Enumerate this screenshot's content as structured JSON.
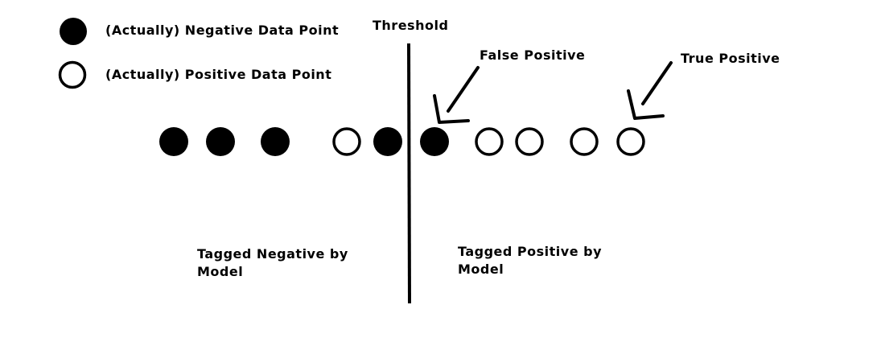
{
  "legend": {
    "negative_label": "(Actually) Negative Data Point",
    "positive_label": "(Actually) Positive Data Point"
  },
  "threshold_label": "Threshold",
  "annotations": {
    "false_positive": "False Positive",
    "true_positive": "True Positive"
  },
  "regions": {
    "negative": "Tagged Negative by Model",
    "positive": "Tagged Positive by Model"
  },
  "points": [
    "negative",
    "negative",
    "negative",
    "positive",
    "negative",
    "negative",
    "positive",
    "positive",
    "positive",
    "positive"
  ],
  "colors": {
    "ink": "#000000",
    "background": "#ffffff"
  }
}
